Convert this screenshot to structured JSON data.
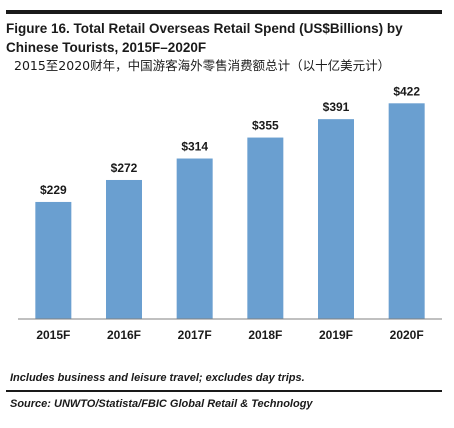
{
  "figure": {
    "title": "Figure 16. Total Retail Overseas Retail Spend (US$Billions) by Chinese Tourists, 2015F–2020F",
    "subtitle": "2015至2020财年，中国游客海外零售消费额总计（以十亿美元计）",
    "note": "Includes business and leisure travel; excludes day trips.",
    "source": "Source: UNWTO/Statista/FBIC Global Retail & Technology"
  },
  "chart_data": {
    "type": "bar",
    "categories": [
      "2015F",
      "2016F",
      "2017F",
      "2018F",
      "2019F",
      "2020F"
    ],
    "values": [
      229,
      272,
      314,
      355,
      391,
      422
    ],
    "data_labels": [
      "$229",
      "$272",
      "$314",
      "$355",
      "$391",
      "$422"
    ],
    "title": "",
    "xlabel": "",
    "ylabel": "",
    "ylim": [
      0,
      450
    ],
    "grid": false,
    "legend": "none",
    "bar_color": "#6a9fd0"
  }
}
